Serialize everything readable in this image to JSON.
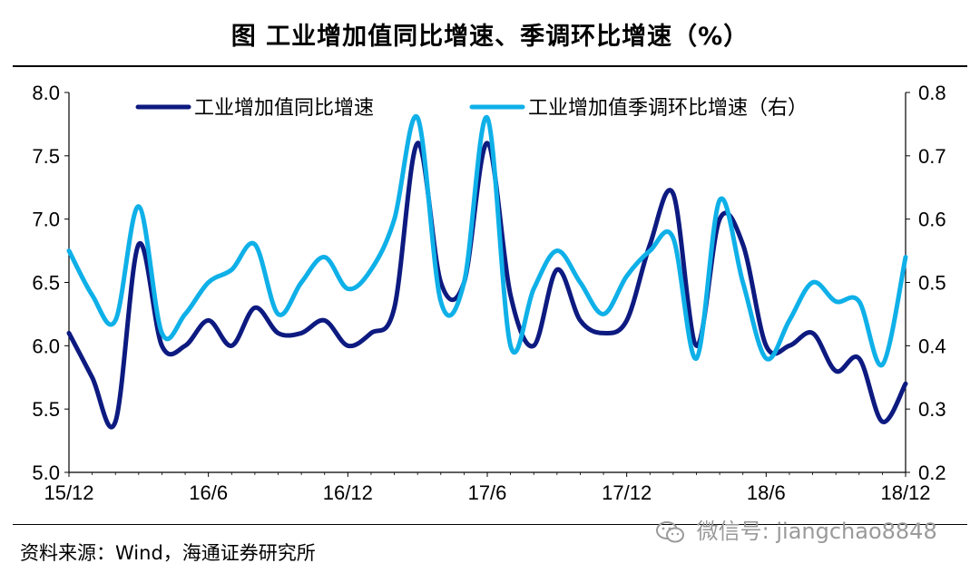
{
  "header": {
    "title": "图    工业增加值同比增速、季调环比增速（%）"
  },
  "footer": {
    "source": "资料来源：Wind，海通证券研究所"
  },
  "watermark": {
    "text": "微信号: jiangchao8848",
    "icon": "wechat-icon"
  },
  "colors": {
    "series_left": "#0d1a80",
    "series_right": "#0fb0e8",
    "axis": "#000000"
  },
  "chart_data": {
    "type": "line",
    "x_tick_labels": [
      "15/12",
      "16/6",
      "16/12",
      "17/6",
      "17/12",
      "18/6",
      "18/12"
    ],
    "ylim": [
      5.0,
      8.0
    ],
    "y_ticks": [
      "5.0",
      "5.5",
      "6.0",
      "6.5",
      "7.0",
      "7.5",
      "8.0"
    ],
    "y2lim": [
      0.2,
      0.8
    ],
    "y2_ticks": [
      "0.2",
      "0.3",
      "0.4",
      "0.5",
      "0.6",
      "0.7",
      "0.8"
    ],
    "legend_position": "top",
    "series": [
      {
        "name": "工业增加值同比增速",
        "axis": "left",
        "x": [
          "15/12",
          "16/1",
          "16/2",
          "16/3",
          "16/4",
          "16/5",
          "16/6",
          "16/7",
          "16/8",
          "16/9",
          "16/10",
          "16/11",
          "16/12",
          "17/1",
          "17/2",
          "17/3",
          "17/4",
          "17/5",
          "17/6",
          "17/7",
          "17/8",
          "17/9",
          "17/10",
          "17/11",
          "17/12",
          "18/1",
          "18/2",
          "18/3",
          "18/4",
          "18/5",
          "18/6",
          "18/7",
          "18/8",
          "18/9",
          "18/10",
          "18/11",
          "18/12"
        ],
        "values": [
          6.1,
          5.75,
          5.4,
          6.8,
          6.0,
          6.0,
          6.2,
          6.0,
          6.3,
          6.1,
          6.1,
          6.2,
          6.0,
          6.1,
          6.3,
          7.6,
          6.5,
          6.5,
          7.6,
          6.4,
          6.0,
          6.6,
          6.2,
          6.1,
          6.2,
          6.8,
          7.2,
          6.0,
          7.0,
          6.8,
          6.0,
          6.0,
          6.1,
          5.8,
          5.9,
          5.4,
          5.7
        ]
      },
      {
        "name": "工业增加值季调环比增速（右）",
        "axis": "right",
        "x": [
          "15/12",
          "16/1",
          "16/2",
          "16/3",
          "16/4",
          "16/5",
          "16/6",
          "16/7",
          "16/8",
          "16/9",
          "16/10",
          "16/11",
          "16/12",
          "17/1",
          "17/2",
          "17/3",
          "17/4",
          "17/5",
          "17/6",
          "17/7",
          "17/8",
          "17/9",
          "17/10",
          "17/11",
          "17/12",
          "18/1",
          "18/2",
          "18/3",
          "18/4",
          "18/5",
          "18/6",
          "18/7",
          "18/8",
          "18/9",
          "18/10",
          "18/11",
          "18/12"
        ],
        "values": [
          0.55,
          0.48,
          0.44,
          0.62,
          0.42,
          0.45,
          0.5,
          0.52,
          0.56,
          0.45,
          0.5,
          0.54,
          0.49,
          0.52,
          0.6,
          0.76,
          0.47,
          0.5,
          0.76,
          0.4,
          0.49,
          0.55,
          0.5,
          0.45,
          0.51,
          0.55,
          0.57,
          0.38,
          0.63,
          0.5,
          0.38,
          0.44,
          0.5,
          0.47,
          0.47,
          0.37,
          0.54
        ]
      }
    ]
  }
}
